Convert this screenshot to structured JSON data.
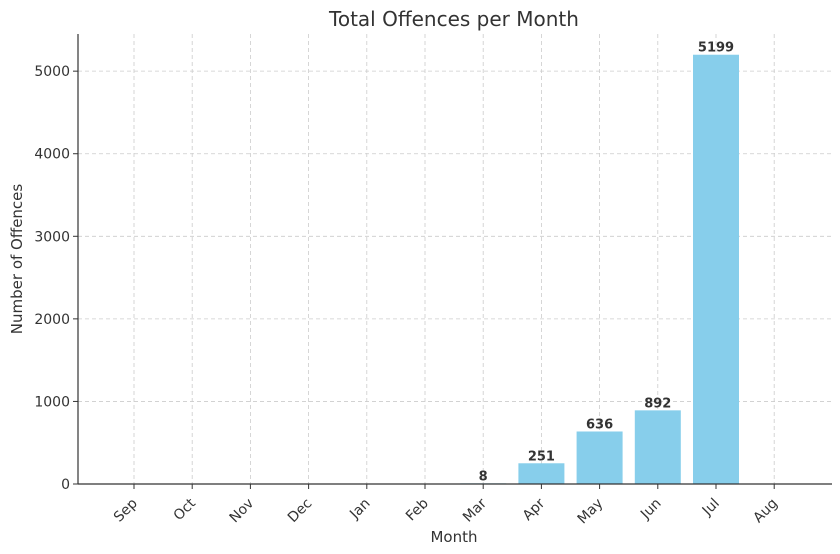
{
  "chart_data": {
    "type": "bar",
    "title": "Total Offences per Month",
    "xlabel": "Month",
    "ylabel": "Number of Offences",
    "categories": [
      "Sep",
      "Oct",
      "Nov",
      "Dec",
      "Jan",
      "Feb",
      "Mar",
      "Apr",
      "May",
      "Jun",
      "Jul",
      "Aug"
    ],
    "values": [
      null,
      null,
      null,
      null,
      null,
      null,
      8,
      251,
      636,
      892,
      5199,
      null
    ],
    "data_labels": [
      "",
      "",
      "",
      "",
      "",
      "",
      "8",
      "251",
      "636",
      "892",
      "5199",
      ""
    ],
    "ylim": [
      0,
      5450
    ],
    "yticks": [
      0,
      1000,
      2000,
      3000,
      4000,
      5000
    ],
    "ytick_labels": [
      "0",
      "1000",
      "2000",
      "3000",
      "4000",
      "5000"
    ],
    "grid": true,
    "bar_color": "#87ceeb"
  }
}
